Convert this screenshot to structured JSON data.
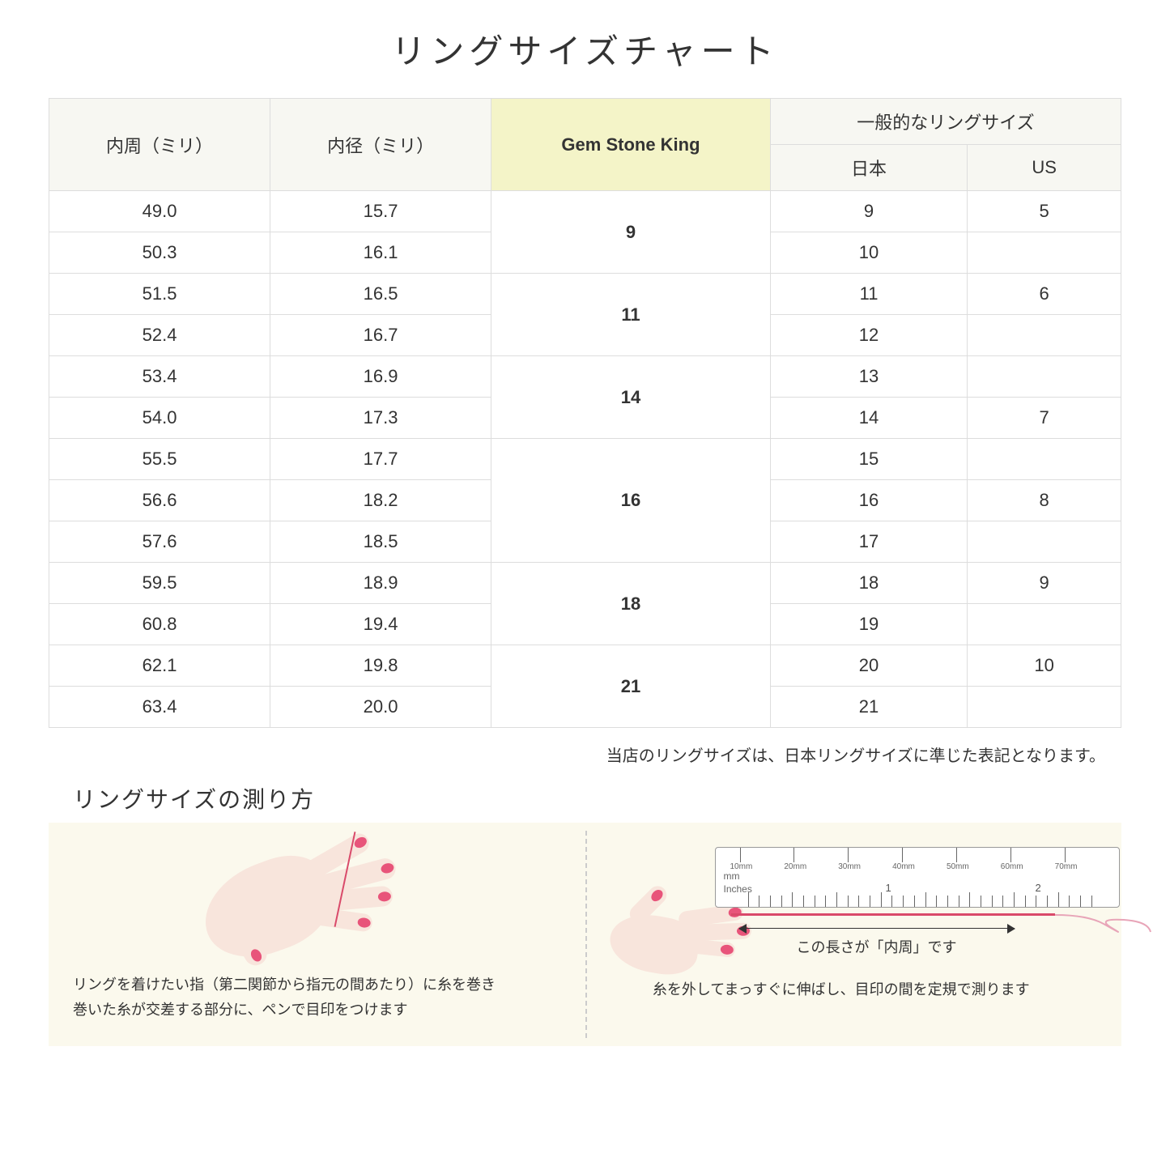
{
  "title": "リングサイズチャート",
  "table": {
    "headers": {
      "circumference": "内周（ミリ）",
      "diameter": "内径（ミリ）",
      "gsk": "Gem Stone King",
      "general": "一般的なリングサイズ",
      "japan": "日本",
      "us": "US"
    },
    "groups": [
      {
        "gsk": "9",
        "rows": [
          {
            "c": "49.0",
            "d": "15.7",
            "jp": "9",
            "us": "5"
          },
          {
            "c": "50.3",
            "d": "16.1",
            "jp": "10",
            "us": ""
          }
        ]
      },
      {
        "gsk": "11",
        "rows": [
          {
            "c": "51.5",
            "d": "16.5",
            "jp": "11",
            "us": "6"
          },
          {
            "c": "52.4",
            "d": "16.7",
            "jp": "12",
            "us": ""
          }
        ]
      },
      {
        "gsk": "14",
        "rows": [
          {
            "c": "53.4",
            "d": "16.9",
            "jp": "13",
            "us": ""
          },
          {
            "c": "54.0",
            "d": "17.3",
            "jp": "14",
            "us": "7"
          }
        ]
      },
      {
        "gsk": "16",
        "rows": [
          {
            "c": "55.5",
            "d": "17.7",
            "jp": "15",
            "us": ""
          },
          {
            "c": "56.6",
            "d": "18.2",
            "jp": "16",
            "us": "8"
          },
          {
            "c": "57.6",
            "d": "18.5",
            "jp": "17",
            "us": ""
          }
        ]
      },
      {
        "gsk": "18",
        "rows": [
          {
            "c": "59.5",
            "d": "18.9",
            "jp": "18",
            "us": "9"
          },
          {
            "c": "60.8",
            "d": "19.4",
            "jp": "19",
            "us": ""
          }
        ]
      },
      {
        "gsk": "21",
        "rows": [
          {
            "c": "62.1",
            "d": "19.8",
            "jp": "20",
            "us": "10"
          },
          {
            "c": "63.4",
            "d": "20.0",
            "jp": "21",
            "us": ""
          }
        ]
      }
    ]
  },
  "note": "当店のリングサイズは、日本リングサイズに準じた表記となります。",
  "subtitle": "リングサイズの測り方",
  "guide": {
    "left_text": "リングを着けたい指（第二関節から指元の間あたり）に糸を巻き\n巻いた糸が交差する部分に、ペンで目印をつけます",
    "right_text": "糸を外してまっすぐに伸ばし、目印の間を定規で測ります",
    "arrow_label": "この長さが「内周」です"
  },
  "ruler": {
    "mm_labels": [
      "10mm",
      "20mm",
      "30mm",
      "40mm",
      "50mm",
      "60mm",
      "70mm"
    ],
    "mm_text": "mm",
    "inches_text": "Inches",
    "inch_nums": [
      "1",
      "2"
    ]
  },
  "colors": {
    "header_bg": "#f7f7f2",
    "gsk_bg": "#f4f4c8",
    "guide_bg": "#fbf9ed",
    "skin": "#f8e5dc",
    "nail": "#e8547a",
    "thread": "#d94a6a",
    "border": "#dddddd"
  }
}
